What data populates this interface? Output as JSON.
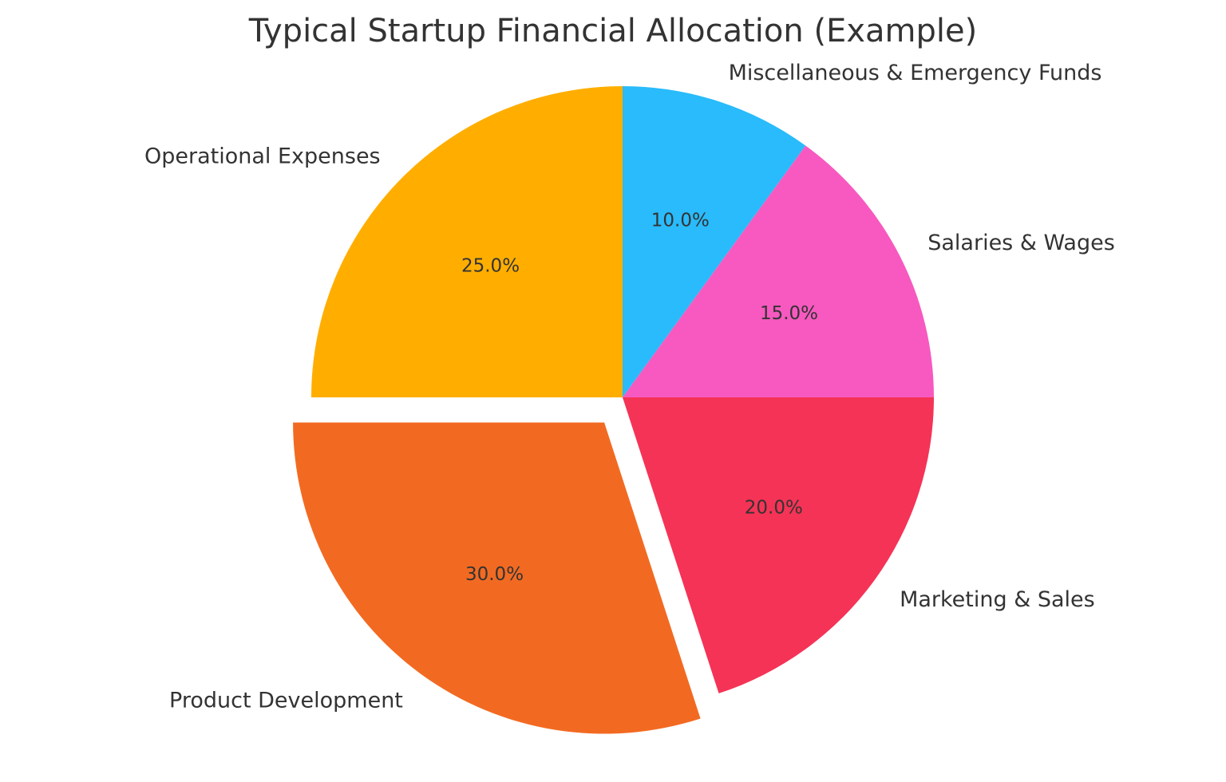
{
  "chart_data": {
    "type": "pie",
    "title": "Typical Startup Financial Allocation (Example)",
    "categories": [
      "Miscellaneous & Emergency Funds",
      "Salaries & Wages",
      "Marketing & Sales",
      "Product Development",
      "Operational Expenses"
    ],
    "values": [
      10.0,
      15.0,
      20.0,
      30.0,
      25.0
    ],
    "value_labels": [
      "10.0%",
      "15.0%",
      "20.0%",
      "30.0%",
      "25.0%"
    ],
    "colors": [
      "#29BBFB",
      "#F759C0",
      "#F53356",
      "#F26A22",
      "#FFAE00"
    ],
    "exploded": [
      "Product Development"
    ],
    "start_angle": 90,
    "direction": "clockwise",
    "legend": "none (labels placed outside slices)"
  },
  "title": "Typical Startup Financial Allocation (Example)",
  "slices": [
    {
      "label": "Miscellaneous & Emergency Funds",
      "pct": "10.0%",
      "color": "#29BBFB"
    },
    {
      "label": "Salaries & Wages",
      "pct": "15.0%",
      "color": "#F759C0"
    },
    {
      "label": "Marketing & Sales",
      "pct": "20.0%",
      "color": "#F53356"
    },
    {
      "label": "Product Development",
      "pct": "30.0%",
      "color": "#F26A22"
    },
    {
      "label": "Operational Expenses",
      "pct": "25.0%",
      "color": "#FFAE00"
    }
  ]
}
